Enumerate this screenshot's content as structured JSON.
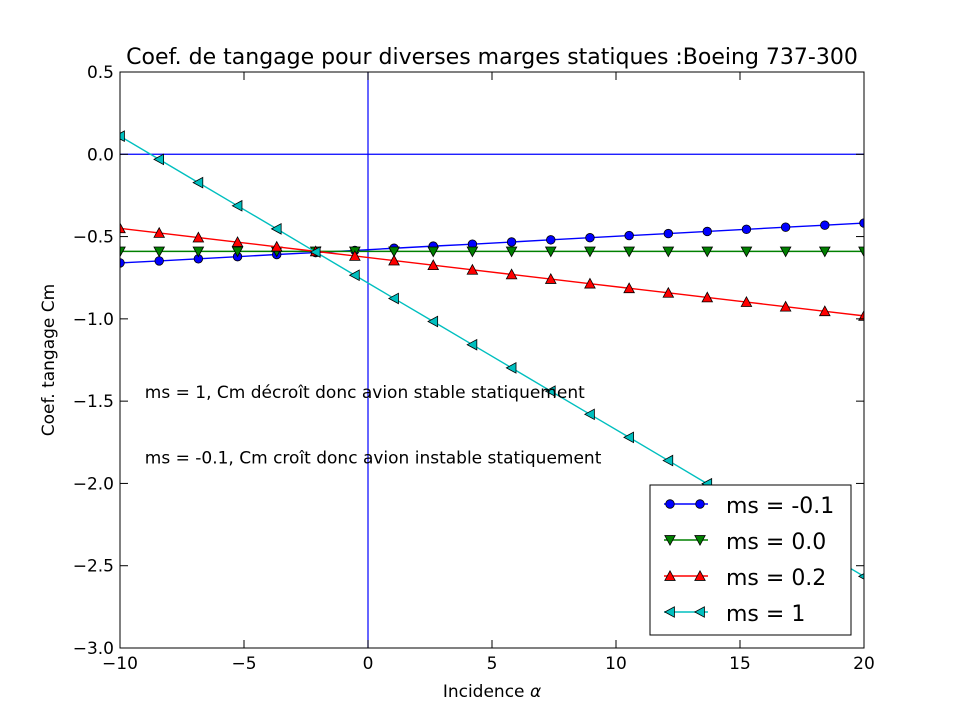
{
  "chart_data": {
    "type": "line",
    "title": "Coef. de tangage pour diverses marges statiques :Boeing 737-300",
    "xlabel": "Incidence",
    "xlabel_symbol": "α",
    "ylabel": "Coef. tangage Cm",
    "xlim": [
      -10,
      20
    ],
    "ylim": [
      -3.0,
      0.5
    ],
    "xticks": [
      -10,
      -5,
      0,
      5,
      10,
      15,
      20
    ],
    "xtick_labels": [
      "−10",
      "−5",
      "0",
      "5",
      "10",
      "15",
      "20"
    ],
    "yticks": [
      0.5,
      0.0,
      -0.5,
      -1.0,
      -1.5,
      -2.0,
      -2.5,
      -3.0
    ],
    "ytick_labels": [
      "0.5",
      "0.0",
      "−0.5",
      "−1.0",
      "−1.5",
      "−2.0",
      "−2.5",
      "−3.0"
    ],
    "grid": false,
    "reference_lines": {
      "horizontal_y": 0.0,
      "vertical_x": 0.0,
      "color": "#0000ff"
    },
    "x": [
      -10.0,
      -8.42,
      -6.84,
      -5.26,
      -3.68,
      -2.11,
      -0.53,
      1.05,
      2.63,
      4.21,
      5.79,
      7.37,
      8.95,
      10.53,
      12.11,
      13.68,
      15.26,
      16.84,
      18.42,
      20.0
    ],
    "series": [
      {
        "name": "ms = -0.1",
        "color": "#0000ff",
        "marker": "circle",
        "values": [
          -0.66,
          -0.648,
          -0.635,
          -0.622,
          -0.609,
          -0.597,
          -0.584,
          -0.571,
          -0.558,
          -0.546,
          -0.533,
          -0.52,
          -0.507,
          -0.494,
          -0.482,
          -0.469,
          -0.456,
          -0.443,
          -0.431,
          -0.418
        ]
      },
      {
        "name": "ms = 0.0",
        "color": "#008000",
        "marker": "triangle-down",
        "values": [
          -0.59,
          -0.59,
          -0.59,
          -0.59,
          -0.59,
          -0.59,
          -0.59,
          -0.59,
          -0.59,
          -0.59,
          -0.59,
          -0.59,
          -0.59,
          -0.59,
          -0.59,
          -0.59,
          -0.59,
          -0.59,
          -0.59,
          -0.59
        ]
      },
      {
        "name": "ms = 0.2",
        "color": "#ff0000",
        "marker": "triangle-up",
        "values": [
          -0.45,
          -0.478,
          -0.506,
          -0.534,
          -0.562,
          -0.59,
          -0.618,
          -0.646,
          -0.674,
          -0.702,
          -0.73,
          -0.758,
          -0.786,
          -0.814,
          -0.842,
          -0.87,
          -0.898,
          -0.926,
          -0.954,
          -0.982
        ]
      },
      {
        "name": "ms = 1",
        "color": "#00bfbf",
        "marker": "triangle-left",
        "values": [
          0.11,
          -0.031,
          -0.172,
          -0.313,
          -0.453,
          -0.594,
          -0.735,
          -0.876,
          -1.016,
          -1.157,
          -1.298,
          -1.439,
          -1.58,
          -1.72,
          -1.861,
          -2.002,
          -2.143,
          -2.284,
          -2.424,
          -2.565
        ]
      }
    ],
    "annotations": [
      {
        "text": "ms = 1, Cm décroît donc avion stable statiquement",
        "x": -9.0,
        "y": -1.48
      },
      {
        "text": "ms = -0.1, Cm croît donc avion instable statiquement",
        "x": -9.0,
        "y": -1.88
      }
    ],
    "legend": {
      "placement": "lower-right"
    }
  }
}
